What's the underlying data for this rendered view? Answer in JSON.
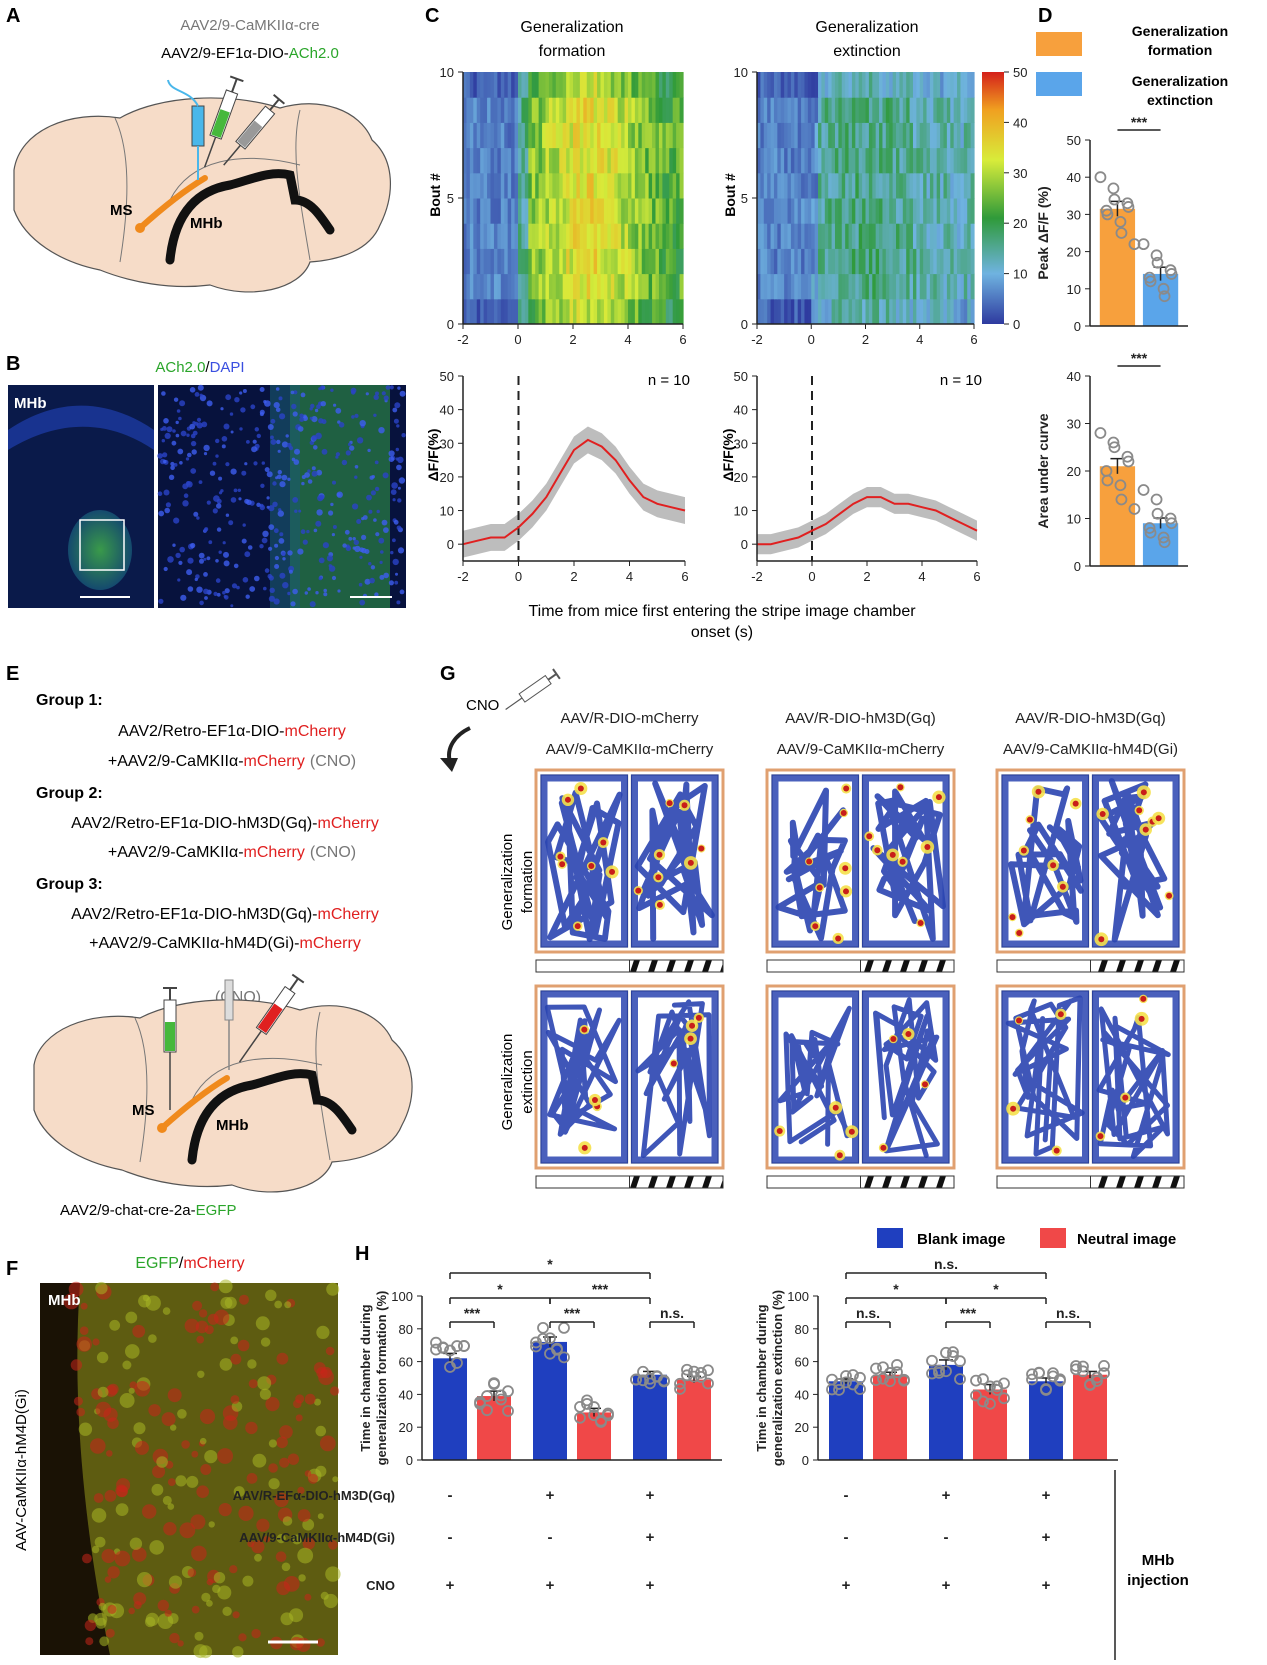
{
  "panels": {
    "A": {
      "letter": "A",
      "vector1": "AAV2/9-CaMKIIα-cre",
      "vector2_pre": "AAV2/9-EF1α-DIO-",
      "vector2_hl": "ACh2.0",
      "ms": "MS",
      "mhb": "MHb"
    },
    "B": {
      "letter": "B",
      "title_a": "ACh2.0",
      "title_sep": "/",
      "title_b": "DAPI",
      "region": "MHb"
    },
    "C": {
      "letter": "C",
      "col1_title": [
        "Generalization",
        "formation"
      ],
      "col2_title": [
        "Generalization",
        "extinction"
      ],
      "heat_ylabel": "Bout #",
      "line_ylabel": "ΔF/F(%)",
      "n_label": "n = 10",
      "xlabel": [
        "Time from mice first entering the stripe image chamber",
        "onset (s)"
      ]
    },
    "D": {
      "letter": "D",
      "legend": [
        {
          "label": [
            "Generalization",
            "formation"
          ],
          "color": "#f7a03d"
        },
        {
          "label": [
            "Generalization",
            "extinction"
          ],
          "color": "#5aa5ea"
        }
      ],
      "sig": "***"
    },
    "E": {
      "letter": "E",
      "g1": "Group 1:",
      "g1l1_pre": "AAV2/Retro-EF1α-DIO-",
      "g1l1_hl": "mCherry",
      "g1l2_pre": "+AAV2/9-CaMKIIα-",
      "g1l2_hl": "mCherry",
      "cno": "(CNO)",
      "g2": "Group 2:",
      "g2l1_pre": "AAV2/Retro-EF1α-DIO-hM3D(Gq)-",
      "g2l1_hl": "mCherry",
      "g2l2_pre": "+AAV2/9-CaMKIIα-",
      "g2l2_hl": "mCherry",
      "g3": "Group 3:",
      "g3l1_pre": "AAV2/Retro-EF1α-DIO-hM3D(Gq)-",
      "g3l1_hl": "mCherry",
      "g3l2_pre": "+AAV2/9-CaMKIIα-hM4D(Gi)-",
      "g3l2_hl": "mCherry",
      "cno_inj": "(CNO)",
      "ms": "MS",
      "mhb": "MHb",
      "bottom_pre": "AAV2/9-chat-cre-2a-",
      "bottom_hl": "EGFP"
    },
    "F": {
      "letter": "F",
      "title_a": "EGFP",
      "title_sep": "/",
      "title_b": "mCherry",
      "region": "MHb",
      "side": "AAV-CaMKIIα-hM4D(Gi)"
    },
    "G": {
      "letter": "G",
      "cno": "CNO",
      "cols": [
        {
          "l1": "AAV/R-DIO-mCherry",
          "l2": "AAV/9-CaMKIIα-mCherry"
        },
        {
          "l1": "AAV/R-DIO-hM3D(Gq)",
          "l2": "AAV/9-CaMKIIα-mCherry"
        },
        {
          "l1": "AAV/R-DIO-hM3D(Gq)",
          "l2": "AAV/9-CaMKIIα-hM4D(Gi)"
        }
      ],
      "rows": [
        [
          "Generalization",
          "formation"
        ],
        [
          "Generalization",
          "extinction"
        ]
      ]
    },
    "H": {
      "letter": "H",
      "legend": [
        {
          "label": "Blank image",
          "color": "#1f3fbf"
        },
        {
          "label": "Neutral image",
          "color": "#f04848"
        }
      ],
      "left_sig": {
        "top": "*",
        "mid1": "*",
        "mid2": "***",
        "p1": "***",
        "p2": "***",
        "p3": "n.s."
      },
      "right_sig": {
        "top": "n.s.",
        "mid1": "*",
        "mid2": "*",
        "p1": "n.s.",
        "p2": "***",
        "p3": "n.s."
      },
      "rows": [
        {
          "label": "AAV/R-EFα-DIO-hM3D(Gq)",
          "vals": [
            "-",
            "+",
            "+"
          ]
        },
        {
          "label": "AAV/9-CaMKIIα-hM4D(Gi)",
          "vals": [
            "-",
            "-",
            "+"
          ]
        },
        {
          "label": "CNO",
          "vals": [
            "+",
            "+",
            "+"
          ]
        }
      ],
      "injection": [
        "MHb",
        "injection"
      ]
    }
  },
  "chart_data": [
    {
      "id": "C-heat-formation",
      "type": "heatmap",
      "title": "Generalization formation",
      "ylabel": "Bout #",
      "xlim": [
        -2,
        6
      ],
      "ylim": [
        0,
        10
      ],
      "xticks": [
        -2,
        0,
        2,
        4,
        6
      ],
      "yticks": [
        0,
        5,
        10
      ]
    },
    {
      "id": "C-heat-extinction",
      "type": "heatmap",
      "title": "Generalization extinction",
      "ylabel": "Bout #",
      "xlim": [
        -2,
        6
      ],
      "ylim": [
        0,
        10
      ],
      "xticks": [
        -2,
        0,
        2,
        4,
        6
      ],
      "yticks": [
        0,
        5,
        10
      ],
      "colorbar": {
        "range": [
          0,
          50
        ],
        "ticks": [
          0,
          10,
          20,
          30,
          40,
          50
        ]
      }
    },
    {
      "id": "C-line-formation",
      "type": "line",
      "ylabel": "ΔF/F(%)",
      "xlim": [
        -2,
        6
      ],
      "ylim": [
        -5,
        50
      ],
      "xticks": [
        -2,
        0,
        2,
        4,
        6
      ],
      "yticks": [
        0,
        10,
        20,
        30,
        40,
        50
      ],
      "x": [
        -2,
        -1.5,
        -1,
        -0.5,
        0,
        0.5,
        1,
        1.5,
        2,
        2.5,
        3,
        3.5,
        4,
        4.5,
        5,
        5.5,
        6
      ],
      "values": [
        0,
        1,
        2,
        2,
        5,
        9,
        14,
        21,
        28,
        31,
        29,
        25,
        19,
        14,
        12,
        11,
        10
      ],
      "band": 4
    },
    {
      "id": "C-line-extinction",
      "type": "line",
      "ylabel": "ΔF/F(%)",
      "xlim": [
        -2,
        6
      ],
      "ylim": [
        -5,
        50
      ],
      "xticks": [
        -2,
        0,
        2,
        4,
        6
      ],
      "yticks": [
        0,
        10,
        20,
        30,
        40,
        50
      ],
      "x": [
        -2,
        -1.5,
        -1,
        -0.5,
        0,
        0.5,
        1,
        1.5,
        2,
        2.5,
        3,
        3.5,
        4,
        4.5,
        5,
        5.5,
        6
      ],
      "values": [
        0,
        0,
        1,
        2,
        4,
        6,
        9,
        12,
        14,
        14,
        12,
        12,
        11,
        10,
        8,
        6,
        4
      ],
      "band": 3
    },
    {
      "id": "D-peak",
      "type": "bar",
      "ylabel": "Peak ΔF/F (%)",
      "ylim": [
        0,
        50
      ],
      "yticks": [
        0,
        10,
        20,
        30,
        40,
        50
      ],
      "categories": [
        "Generalization formation",
        "Generalization extinction"
      ],
      "values": [
        31.5,
        14
      ],
      "sem": [
        2,
        1.8
      ],
      "points": [
        [
          40,
          37,
          34,
          33,
          32,
          31,
          30,
          28,
          25,
          22
        ],
        [
          22,
          19,
          17,
          15,
          14,
          13,
          12,
          10,
          8
        ]
      ]
    },
    {
      "id": "D-auc",
      "type": "bar",
      "ylabel": "Area under curve",
      "ylim": [
        0,
        40
      ],
      "yticks": [
        0,
        10,
        20,
        30,
        40
      ],
      "categories": [
        "Generalization formation",
        "Generalization extinction"
      ],
      "values": [
        21,
        9
      ],
      "sem": [
        1.6,
        1.1
      ],
      "points": [
        [
          28,
          26,
          25,
          23,
          22,
          20,
          18,
          17,
          14,
          12
        ],
        [
          16,
          14,
          11,
          10,
          9,
          8,
          7,
          6,
          5
        ]
      ]
    },
    {
      "id": "H-formation",
      "type": "bar",
      "ylabel": "Time in chamber during generalization formation (%)",
      "ylim": [
        0,
        100
      ],
      "yticks": [
        0,
        20,
        40,
        60,
        80,
        100
      ],
      "series": [
        {
          "name": "Blank image",
          "values": [
            62,
            72,
            52
          ]
        },
        {
          "name": "Neutral image",
          "values": [
            39,
            29,
            49
          ]
        }
      ],
      "sem": [
        [
          3,
          3,
          2
        ],
        [
          3,
          2.5,
          2
        ]
      ]
    },
    {
      "id": "H-extinction",
      "type": "bar",
      "ylabel": "Time in chamber during generalization extinction (%)",
      "ylim": [
        0,
        100
      ],
      "yticks": [
        0,
        20,
        40,
        60,
        80,
        100
      ],
      "series": [
        {
          "name": "Blank image",
          "values": [
            48,
            58,
            48
          ]
        },
        {
          "name": "Neutral image",
          "values": [
            52,
            43,
            52
          ]
        }
      ],
      "sem": [
        [
          1.5,
          3,
          2
        ],
        [
          1.5,
          3,
          2
        ]
      ]
    }
  ]
}
